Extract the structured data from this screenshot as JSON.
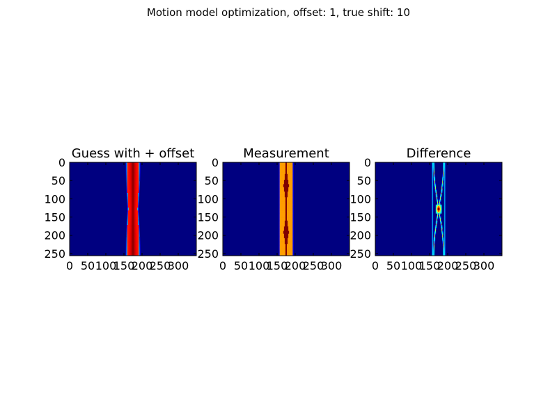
{
  "suptitle": "Motion model optimization, offset:  1, true shift: 10",
  "colors": {
    "background": "#000080",
    "frame": "#000000",
    "colormap": "jet"
  },
  "chart_data": [
    {
      "type": "heatmap",
      "title": "Guess with + offset",
      "xlim": [
        0,
        350
      ],
      "ylim": [
        256,
        0
      ],
      "xticks": [
        0,
        50,
        100,
        150,
        200,
        250,
        300
      ],
      "yticks": [
        0,
        50,
        100,
        150,
        200,
        250
      ],
      "xtick_labels": [
        "0",
        "50",
        "100",
        "150",
        "200",
        "250",
        "300"
      ],
      "ytick_labels": [
        "0",
        "50",
        "100",
        "150",
        "200",
        "250"
      ],
      "band": {
        "center_x": 175,
        "half_width": 17,
        "peak_value": 1.0,
        "edge_value": 0.85,
        "waist_rows": [
          0,
          128,
          256
        ]
      },
      "description_pattern": "hourglass"
    },
    {
      "type": "heatmap",
      "title": "Measurement",
      "xlim": [
        0,
        350
      ],
      "ylim": [
        256,
        0
      ],
      "xticks": [
        0,
        50,
        100,
        150,
        200,
        250,
        300
      ],
      "yticks": [
        0,
        50,
        100,
        150,
        200,
        250
      ],
      "xtick_labels": [
        "0",
        "50",
        "100",
        "150",
        "200",
        "250",
        "300"
      ],
      "ytick_labels": [
        "0",
        "50",
        "100",
        "150",
        "200",
        "250"
      ],
      "band": {
        "center_x": 175,
        "half_width": 17,
        "peak_value": 0.9,
        "edge_value": 0.72,
        "waist_rows": [
          64,
          192
        ]
      },
      "description_pattern": "diamond"
    },
    {
      "type": "heatmap",
      "title": "Difference",
      "xlim": [
        0,
        350
      ],
      "ylim": [
        256,
        0
      ],
      "xticks": [
        0,
        50,
        100,
        150,
        200,
        250,
        300
      ],
      "yticks": [
        0,
        50,
        100,
        150,
        200,
        250
      ],
      "xtick_labels": [
        "0",
        "50",
        "100",
        "150",
        "200",
        "250",
        "300"
      ],
      "ytick_labels": [
        "0",
        "50",
        "100",
        "150",
        "200",
        "250"
      ],
      "band": {
        "center_x": 175,
        "half_width": 17,
        "peak_value": 0.95,
        "edge_value": 0.35,
        "waist_rows": [
          128
        ]
      },
      "description_pattern": "crossing"
    }
  ]
}
